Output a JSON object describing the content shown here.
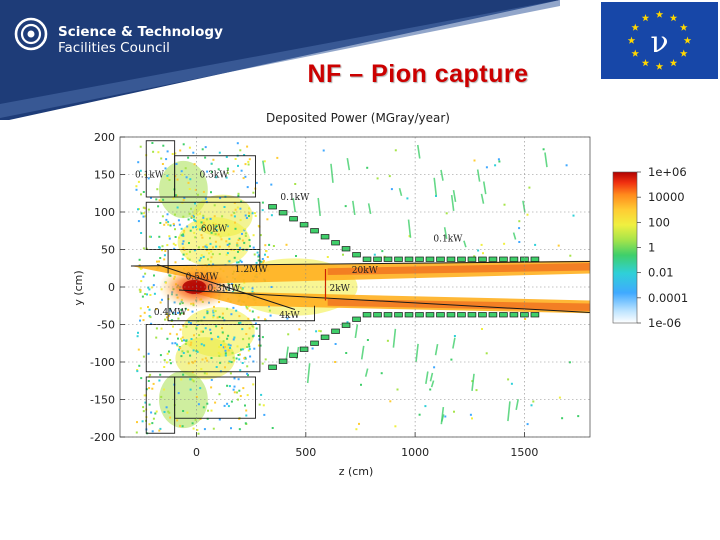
{
  "header": {
    "org_line1": "Science & Technology",
    "org_line2": "Facilities Council",
    "slide_title": "NF – Pion capture",
    "flag_symbol": "ν",
    "colors": {
      "banner": "#1e3c78",
      "title": "#cc0000",
      "flag": "#1747a8",
      "stars": "#ffd700"
    }
  },
  "chart_data": {
    "type": "heatmap",
    "title": "Deposited Power (MGray/year)",
    "xlabel": "z (cm)",
    "ylabel": "y (cm)",
    "xlim": [
      -350,
      1800
    ],
    "ylim": [
      -200,
      200
    ],
    "x_ticks": [
      0,
      500,
      1000,
      1500
    ],
    "y_ticks": [
      200,
      150,
      100,
      50,
      0,
      -50,
      -100,
      -150,
      -200
    ],
    "colorbar": {
      "scale": "log",
      "range": [
        1e-06,
        1000000.0
      ],
      "tick_labels": [
        "1e+06",
        "10000",
        "100",
        "1",
        "0.01",
        "0.0001",
        "1e-06"
      ]
    },
    "annotations": [
      {
        "text": "0.1kW",
        "x": -215,
        "y": 150
      },
      {
        "text": "0.3kW",
        "x": 80,
        "y": 150
      },
      {
        "text": "0.1kW",
        "x": 450,
        "y": 120
      },
      {
        "text": "60kW",
        "x": 80,
        "y": 78
      },
      {
        "text": "0.1kW",
        "x": 1150,
        "y": 65
      },
      {
        "text": "0.5MW",
        "x": 25,
        "y": 14
      },
      {
        "text": "1.2MW",
        "x": 250,
        "y": 24
      },
      {
        "text": "20kW",
        "x": 770,
        "y": 23
      },
      {
        "text": "0.3MW",
        "x": 125,
        "y": -1
      },
      {
        "text": "2kW",
        "x": 655,
        "y": -1
      },
      {
        "text": "4kW",
        "x": 425,
        "y": -37
      },
      {
        "text": "0.4MW",
        "x": -120,
        "y": -33
      }
    ]
  }
}
